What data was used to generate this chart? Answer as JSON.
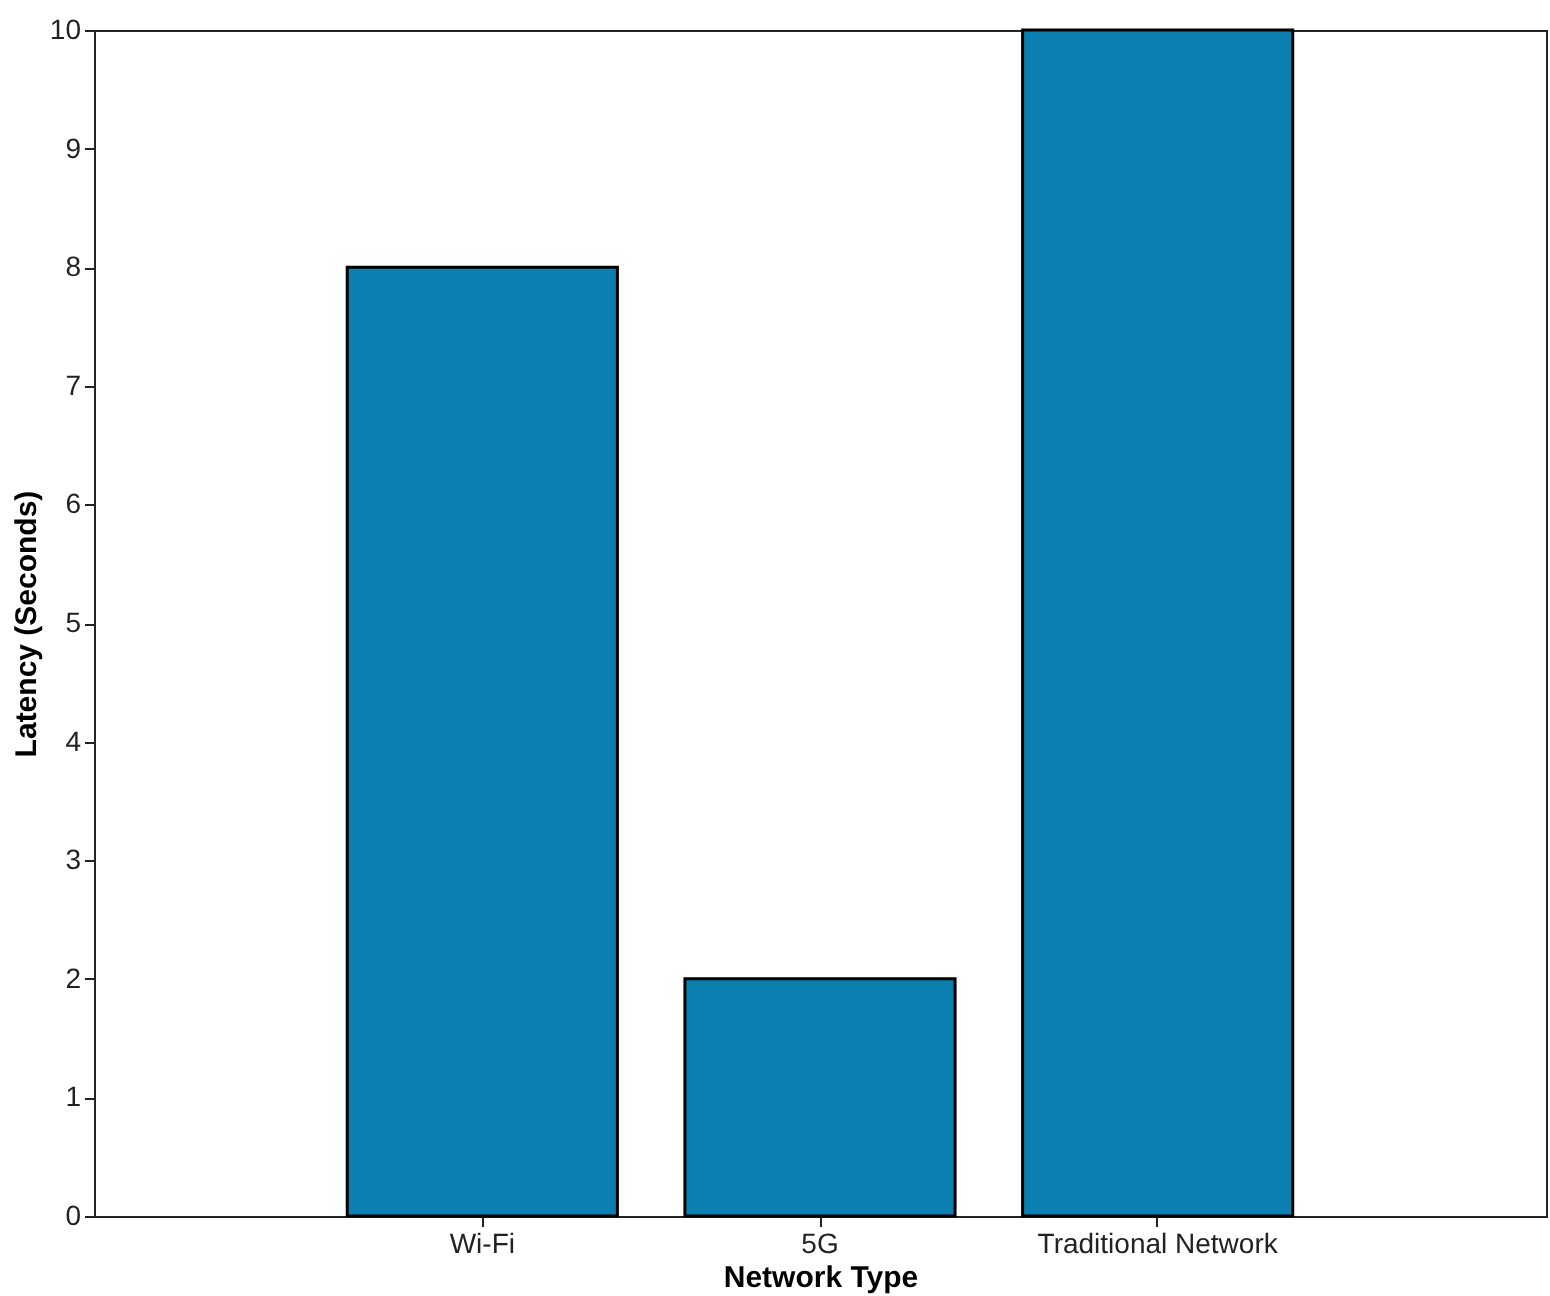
{
  "chart_data": {
    "type": "bar",
    "xlabel": "Network Type",
    "ylabel": "Latency (Seconds)",
    "categories": [
      "Wi-Fi",
      "5G",
      "Traditional Network"
    ],
    "series": [
      {
        "color": "#0a7fb0",
        "values": [
          8,
          2,
          10
        ]
      }
    ],
    "ylim": [
      0,
      10
    ],
    "yticks": [
      0,
      1,
      2,
      3,
      4,
      5,
      6,
      7,
      8,
      9,
      10
    ],
    "grid": false
  }
}
